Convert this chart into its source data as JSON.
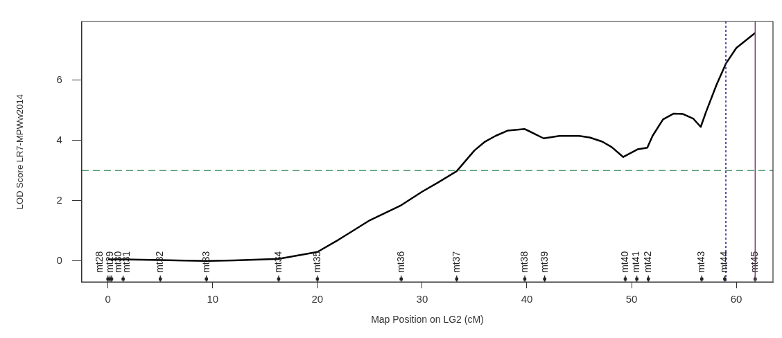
{
  "chart_data": {
    "type": "line",
    "xlabel": "Map Position on LG2 (cM)",
    "ylabel": "LOD Score LR7-MPWw2014",
    "xlim": [
      -2.5,
      63.5
    ],
    "xticks": [
      0,
      10,
      20,
      30,
      40,
      50,
      60
    ],
    "ylim": [
      -0.7,
      7.95
    ],
    "yticks": [
      0,
      2,
      4,
      6
    ],
    "grid": false,
    "legend": false,
    "line_style": "solid",
    "series": [
      {
        "color": "#000000",
        "marker": "none",
        "x": [
          0,
          1.45,
          5,
          9.4,
          12,
          16.3,
          20,
          22,
          25,
          28,
          30,
          31.5,
          33.3,
          35,
          36,
          37,
          38.2,
          39.8,
          41.6,
          43.1,
          45,
          46,
          47.2,
          48.1,
          49.2,
          50.6,
          51.5,
          52,
          53,
          54,
          54.9,
          55.9,
          56.6,
          57.1,
          58.1,
          59,
          60,
          61.8
        ],
        "values": [
          0.05,
          0.05,
          0.03,
          0.0,
          0.02,
          0.07,
          0.3,
          0.7,
          1.35,
          1.85,
          2.3,
          2.6,
          2.98,
          3.67,
          3.96,
          4.15,
          4.33,
          4.38,
          4.07,
          4.15,
          4.15,
          4.1,
          3.96,
          3.78,
          3.45,
          3.71,
          3.76,
          4.15,
          4.7,
          4.89,
          4.88,
          4.72,
          4.45,
          4.94,
          5.84,
          6.55,
          7.07,
          7.57
        ]
      },
      {
        "type": "scatter",
        "color": "#222222",
        "marker": "square",
        "x": [
          0,
          0.2,
          0.35,
          1.45,
          5,
          9.4,
          16.3,
          20,
          28,
          33.3,
          39.8,
          41.7,
          49.4,
          50.5,
          51.6,
          56.7,
          58.9,
          61.8
        ],
        "values": [
          -0.6,
          -0.6,
          -0.6,
          -0.6,
          -0.6,
          -0.6,
          -0.6,
          -0.6,
          -0.6,
          -0.6,
          -0.6,
          -0.6,
          -0.6,
          -0.6,
          -0.6,
          -0.6,
          -0.6,
          -0.6
        ],
        "value_labels": [
          "mt28",
          "mt29",
          "mt30",
          "mt31",
          "mt32",
          "mt33",
          "mt34",
          "mt35",
          "mt36",
          "mt37",
          "mt38",
          "mt39",
          "mt40",
          "mt41",
          "mt42",
          "mt43",
          "mt44",
          "mt45"
        ]
      }
    ],
    "ref_lines": [
      {
        "axis": "y",
        "value": 3,
        "color": "#4f9a6f",
        "line_style": "dashed"
      },
      {
        "axis": "x",
        "value": 59,
        "color": "#1a1a8c",
        "line_style": "dotted"
      },
      {
        "axis": "x",
        "value": 61.8,
        "color": "#7a3d7a",
        "line_style": "solid"
      }
    ]
  }
}
